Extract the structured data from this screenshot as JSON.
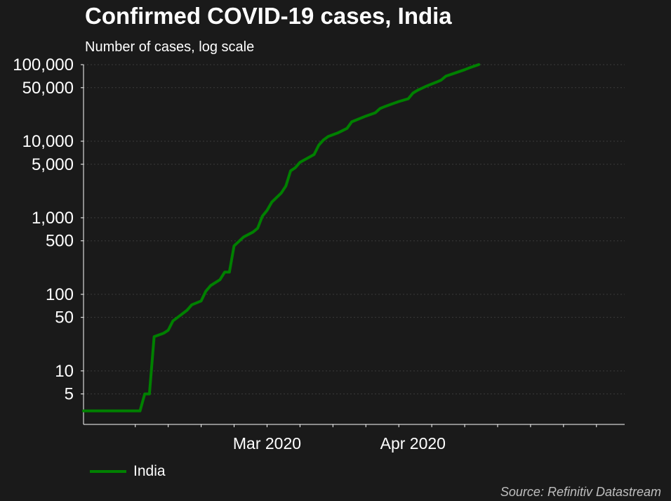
{
  "chart_data": {
    "type": "line",
    "title": "Confirmed COVID-19 cases, India",
    "subtitle": "Number of cases, log scale",
    "source": "Source: Refinitiv Datastream",
    "y_scale": "log",
    "ylim": [
      2,
      100000
    ],
    "y_ticks": [
      {
        "value": 5,
        "label": "5"
      },
      {
        "value": 10,
        "label": "10"
      },
      {
        "value": 50,
        "label": "50"
      },
      {
        "value": 100,
        "label": "100"
      },
      {
        "value": 500,
        "label": "500"
      },
      {
        "value": 1000,
        "label": "1,000"
      },
      {
        "value": 5000,
        "label": "5,000"
      },
      {
        "value": 10000,
        "label": "10,000"
      },
      {
        "value": 50000,
        "label": "50,000"
      },
      {
        "value": 100000,
        "label": "100,000"
      }
    ],
    "xlim": [
      "2020-01-22",
      "2020-05-16"
    ],
    "x_labels": [
      {
        "date": "2020-03-01",
        "label": "Mar 2020"
      },
      {
        "date": "2020-04-01",
        "label": "Apr 2020"
      }
    ],
    "grid": true,
    "legend_position": "bottom-left",
    "series": [
      {
        "name": "India",
        "color": "#008000",
        "points": [
          [
            "2020-01-22",
            3
          ],
          [
            "2020-02-01",
            3
          ],
          [
            "2020-02-02",
            3
          ],
          [
            "2020-02-03",
            3
          ],
          [
            "2020-02-04",
            5
          ],
          [
            "2020-02-05",
            5
          ],
          [
            "2020-02-06",
            28
          ],
          [
            "2020-02-08",
            31
          ],
          [
            "2020-02-09",
            34
          ],
          [
            "2020-02-10",
            45
          ],
          [
            "2020-02-11",
            50
          ],
          [
            "2020-02-13",
            62
          ],
          [
            "2020-02-14",
            73
          ],
          [
            "2020-02-16",
            82
          ],
          [
            "2020-02-17",
            110
          ],
          [
            "2020-02-18",
            130
          ],
          [
            "2020-02-20",
            155
          ],
          [
            "2020-02-21",
            195
          ],
          [
            "2020-02-22",
            195
          ],
          [
            "2020-02-23",
            430
          ],
          [
            "2020-02-25",
            560
          ],
          [
            "2020-02-27",
            650
          ],
          [
            "2020-02-28",
            730
          ],
          [
            "2020-02-29",
            1050
          ],
          [
            "2020-03-01",
            1250
          ],
          [
            "2020-03-02",
            1600
          ],
          [
            "2020-03-04",
            2100
          ],
          [
            "2020-03-05",
            2600
          ],
          [
            "2020-03-06",
            4100
          ],
          [
            "2020-03-07",
            4500
          ],
          [
            "2020-03-08",
            5300
          ],
          [
            "2020-03-10",
            6200
          ],
          [
            "2020-03-11",
            6700
          ],
          [
            "2020-03-12",
            8900
          ],
          [
            "2020-03-13",
            10400
          ],
          [
            "2020-03-14",
            11500
          ],
          [
            "2020-03-16",
            12800
          ],
          [
            "2020-03-18",
            14700
          ],
          [
            "2020-03-19",
            17900
          ],
          [
            "2020-03-20",
            19000
          ],
          [
            "2020-03-22",
            21300
          ],
          [
            "2020-03-24",
            23500
          ],
          [
            "2020-03-25",
            26700
          ],
          [
            "2020-03-26",
            28300
          ],
          [
            "2020-03-27",
            29800
          ],
          [
            "2020-03-29",
            33000
          ],
          [
            "2020-03-31",
            35800
          ],
          [
            "2020-04-01",
            42500
          ],
          [
            "2020-04-02",
            46300
          ],
          [
            "2020-04-04",
            52800
          ],
          [
            "2020-04-06",
            59100
          ],
          [
            "2020-04-07",
            62800
          ],
          [
            "2020-04-08",
            70700
          ],
          [
            "2020-04-10",
            78000
          ],
          [
            "2020-04-12",
            85800
          ],
          [
            "2020-04-13",
            90900
          ],
          [
            "2020-04-15",
            100300
          ]
        ]
      }
    ]
  }
}
